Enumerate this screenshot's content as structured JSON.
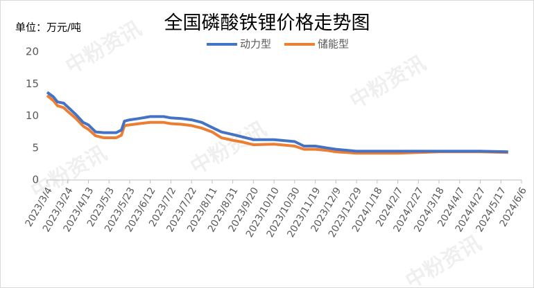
{
  "chart_data": {
    "type": "line",
    "title": "全国磷酸铁锂价格走势图",
    "unit_label": "单位：万元/吨",
    "watermark": "中粉资讯",
    "x": [
      "2023/3/4",
      "2023/3/10",
      "2023/3/14",
      "2023/3/20",
      "2023/3/24",
      "2023/4/1",
      "2023/4/8",
      "2023/4/13",
      "2023/4/20",
      "2023/4/28",
      "2023/5/3",
      "2023/5/10",
      "2023/5/15",
      "2023/5/18",
      "2023/5/23",
      "2023/6/1",
      "2023/6/12",
      "2023/6/25",
      "2023/7/2",
      "2023/7/12",
      "2023/7/22",
      "2023/8/1",
      "2023/8/11",
      "2023/8/20",
      "2023/8/31",
      "2023/9/10",
      "2023/9/20",
      "2023/10/10",
      "2023/10/30",
      "2023/11/8",
      "2023/11/19",
      "2023/12/1",
      "2023/12/9",
      "2023/12/29",
      "2024/2/7",
      "2024/3/18",
      "2024/4/27",
      "2024/5/24"
    ],
    "series": [
      {
        "name": "动力型",
        "color": "#4472c4",
        "values": [
          13.7,
          13.0,
          12.2,
          12.0,
          11.4,
          10.2,
          9.0,
          8.6,
          7.5,
          7.4,
          7.4,
          7.4,
          7.8,
          9.2,
          9.4,
          9.6,
          9.9,
          9.9,
          9.7,
          9.6,
          9.4,
          9.0,
          8.2,
          7.5,
          7.1,
          6.7,
          6.3,
          6.3,
          6.0,
          5.3,
          5.3,
          5.0,
          4.8,
          4.5,
          4.5,
          4.5,
          4.5,
          4.4
        ]
      },
      {
        "name": "储能型",
        "color": "#ed7d31",
        "values": [
          13.2,
          12.4,
          11.6,
          11.3,
          10.7,
          9.6,
          8.4,
          7.9,
          6.9,
          6.6,
          6.6,
          6.6,
          7.0,
          8.5,
          8.6,
          8.8,
          9.0,
          9.0,
          8.8,
          8.7,
          8.5,
          8.1,
          7.5,
          6.6,
          6.2,
          5.9,
          5.5,
          5.6,
          5.3,
          4.8,
          4.8,
          4.6,
          4.4,
          4.2,
          4.2,
          4.4,
          4.4,
          4.3
        ]
      }
    ],
    "xlim": [
      "2023/3/4",
      "2024/6/6"
    ],
    "xticks": [
      "2023/3/4",
      "2023/3/24",
      "2023/4/13",
      "2023/5/3",
      "2023/5/23",
      "2023/6/12",
      "2023/7/2",
      "2023/7/22",
      "2023/8/11",
      "2023/8/31",
      "2023/9/20",
      "2023/10/10",
      "2023/10/30",
      "2023/11/19",
      "2023/12/9",
      "2023/12/29",
      "2024/1/18",
      "2024/2/7",
      "2024/2/27",
      "2024/3/18",
      "2024/4/7",
      "2024/4/27",
      "2024/5/17",
      "2024/6/6"
    ],
    "ylim": [
      0,
      20
    ],
    "yticks": [
      0,
      5,
      10,
      15,
      20
    ],
    "grid": false,
    "legend": "top"
  }
}
